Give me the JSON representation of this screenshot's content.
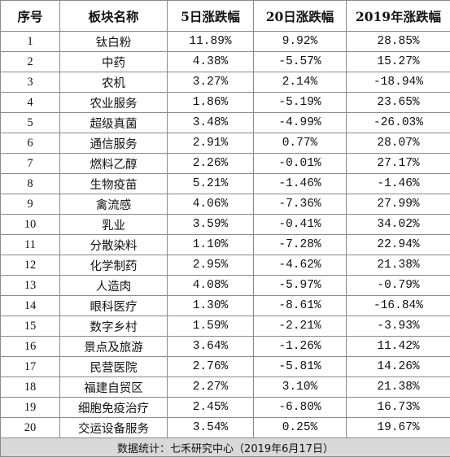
{
  "table": {
    "headers": [
      "序号",
      "板块名称",
      "5日涨跌幅",
      "20日涨跌幅",
      "2019年涨跌幅"
    ],
    "rows": [
      [
        "1",
        "钛白粉",
        "11.89%",
        "9.92%",
        "28.85%"
      ],
      [
        "2",
        "中药",
        "4.38%",
        "-5.57%",
        "15.27%"
      ],
      [
        "3",
        "农机",
        "3.27%",
        "2.14%",
        "-18.94%"
      ],
      [
        "4",
        "农业服务",
        "1.86%",
        "-5.19%",
        "23.65%"
      ],
      [
        "5",
        "超级真菌",
        "3.48%",
        "-4.99%",
        "-26.03%"
      ],
      [
        "6",
        "通信服务",
        "2.91%",
        "0.77%",
        "28.07%"
      ],
      [
        "7",
        "燃料乙醇",
        "2.26%",
        "-0.01%",
        "27.17%"
      ],
      [
        "8",
        "生物疫苗",
        "5.21%",
        "-1.46%",
        "-1.46%"
      ],
      [
        "9",
        "禽流感",
        "4.06%",
        "-7.36%",
        "27.99%"
      ],
      [
        "10",
        "乳业",
        "3.59%",
        "-0.41%",
        "34.02%"
      ],
      [
        "11",
        "分散染料",
        "1.10%",
        "-7.28%",
        "22.94%"
      ],
      [
        "12",
        "化学制药",
        "2.95%",
        "-4.62%",
        "21.38%"
      ],
      [
        "13",
        "人造肉",
        "4.08%",
        "-5.97%",
        "-0.79%"
      ],
      [
        "14",
        "眼科医疗",
        "1.30%",
        "-8.61%",
        "-16.84%"
      ],
      [
        "15",
        "数字乡村",
        "1.59%",
        "-2.21%",
        "-3.93%"
      ],
      [
        "16",
        "景点及旅游",
        "3.64%",
        "-1.26%",
        "11.42%"
      ],
      [
        "17",
        "民营医院",
        "2.76%",
        "-5.81%",
        "14.26%"
      ],
      [
        "18",
        "福建自贸区",
        "2.27%",
        "3.10%",
        "21.38%"
      ],
      [
        "19",
        "细胞免疫治疗",
        "2.45%",
        "-6.80%",
        "16.73%"
      ],
      [
        "20",
        "交运设备服务",
        "3.54%",
        "0.25%",
        "19.67%"
      ]
    ],
    "footer": "数据统计：七禾研究中心（2019年6月17日）"
  }
}
